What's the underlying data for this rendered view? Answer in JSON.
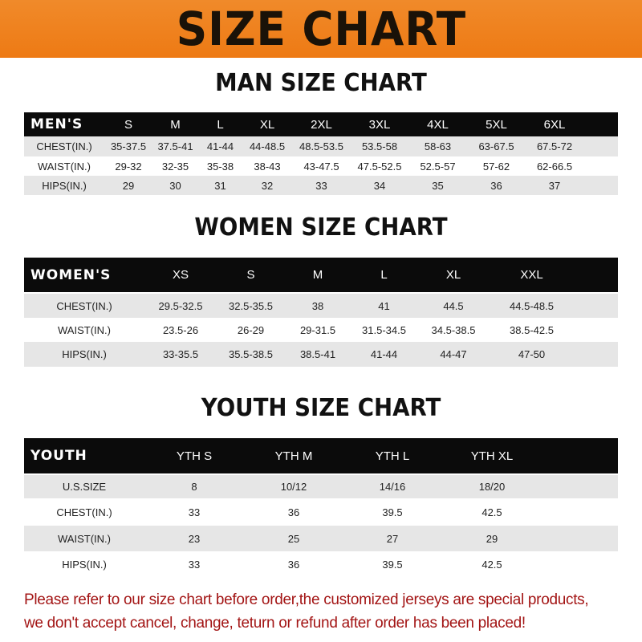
{
  "header": {
    "title": "SIZE CHART"
  },
  "men": {
    "title": "MAN SIZE CHART",
    "label": "MEN'S",
    "sizes": [
      "S",
      "M",
      "L",
      "XL",
      "2XL",
      "3XL",
      "4XL",
      "5XL",
      "6XL"
    ],
    "rows": [
      {
        "label": "CHEST(IN.)",
        "values": [
          "35-37.5",
          "37.5-41",
          "41-44",
          "44-48.5",
          "48.5-53.5",
          "53.5-58",
          "58-63",
          "63-67.5",
          "67.5-72"
        ]
      },
      {
        "label": "WAIST(IN.)",
        "values": [
          "29-32",
          "32-35",
          "35-38",
          "38-43",
          "43-47.5",
          "47.5-52.5",
          "52.5-57",
          "57-62",
          "62-66.5"
        ]
      },
      {
        "label": "HIPS(IN.)",
        "values": [
          "29",
          "30",
          "31",
          "32",
          "33",
          "34",
          "35",
          "36",
          "37"
        ]
      }
    ]
  },
  "women": {
    "title": "WOMEN SIZE CHART",
    "label": "WOMEN'S",
    "sizes": [
      "XS",
      "S",
      "M",
      "L",
      "XL",
      "XXL"
    ],
    "rows": [
      {
        "label": "CHEST(IN.)",
        "values": [
          "29.5-32.5",
          "32.5-35.5",
          "38",
          "41",
          "44.5",
          "44.5-48.5"
        ]
      },
      {
        "label": "WAIST(IN.)",
        "values": [
          "23.5-26",
          "26-29",
          "29-31.5",
          "31.5-34.5",
          "34.5-38.5",
          "38.5-42.5"
        ]
      },
      {
        "label": "HIPS(IN.)",
        "values": [
          "33-35.5",
          "35.5-38.5",
          "38.5-41",
          "41-44",
          "44-47",
          "47-50"
        ]
      }
    ]
  },
  "youth": {
    "title": "YOUTH SIZE CHART",
    "label": "YOUTH",
    "sizes": [
      "YTH S",
      "YTH M",
      "YTH L",
      "YTH XL"
    ],
    "rows": [
      {
        "label": "U.S.SIZE",
        "values": [
          "8",
          "10/12",
          "14/16",
          "18/20"
        ]
      },
      {
        "label": "CHEST(IN.)",
        "values": [
          "33",
          "36",
          "39.5",
          "42.5"
        ]
      },
      {
        "label": "WAIST(IN.)",
        "values": [
          "23",
          "25",
          "27",
          "29"
        ]
      },
      {
        "label": "HIPS(IN.)",
        "values": [
          "33",
          "36",
          "39.5",
          "42.5"
        ]
      }
    ]
  },
  "note": {
    "line1": "Please refer to our size chart before order,the customized jerseys are special products,",
    "line2": "we don't accept cancel, change, teturn or refund after order has been placed!"
  },
  "colors": {
    "banner": "#ee7a14",
    "header_row": "#0b0b0b",
    "stripe": "#e6e6e6",
    "note": "#a31515"
  }
}
